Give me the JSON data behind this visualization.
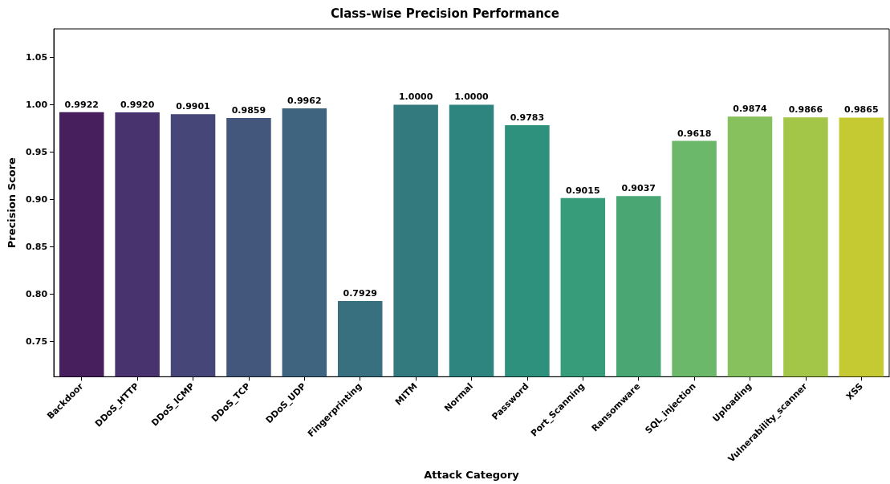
{
  "chart_data": {
    "type": "bar",
    "title": "Class-wise Precision Performance",
    "xlabel": "Attack Category",
    "ylabel": "Precision Score",
    "categories": [
      "Backdoor",
      "DDoS_HTTP",
      "DDoS_ICMP",
      "DDoS_TCP",
      "DDoS_UDP",
      "Fingerprinting",
      "MITM",
      "Normal",
      "Password",
      "Port_Scanning",
      "Ransomware",
      "SQL_injection",
      "Uploading",
      "Vulnerability_scanner",
      "XSS"
    ],
    "values": [
      0.9922,
      0.992,
      0.9901,
      0.9859,
      0.9962,
      0.7929,
      1.0,
      1.0,
      0.9783,
      0.9015,
      0.9037,
      0.9618,
      0.9874,
      0.9866,
      0.9865
    ],
    "value_labels": [
      "0.9922",
      "0.9920",
      "0.9901",
      "0.9859",
      "0.9962",
      "0.7929",
      "1.0000",
      "1.0000",
      "0.9783",
      "0.9015",
      "0.9037",
      "0.9618",
      "0.9874",
      "0.9866",
      "0.9865"
    ],
    "colors": [
      "#471f5c",
      "#48336f",
      "#464778",
      "#43577d",
      "#3e647f",
      "#38707f",
      "#337a7f",
      "#2e857f",
      "#2e917d",
      "#369c7a",
      "#4aa774",
      "#6bb86a",
      "#86c15d",
      "#a3c548",
      "#c5c932"
    ],
    "ylim": [
      0.713,
      1.08
    ],
    "yticks": [
      0.75,
      {
        "value": 0.8,
        "label": "0.80"
      },
      0.85,
      {
        "value": 0.9,
        "label": "0.90"
      },
      0.95,
      {
        "value": 1.0,
        "label": "1.00"
      },
      1.05
    ],
    "grid": false
  }
}
